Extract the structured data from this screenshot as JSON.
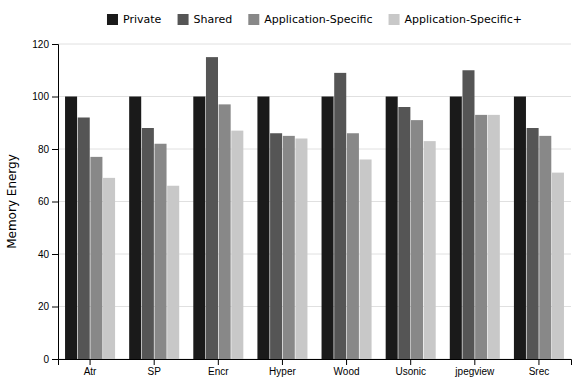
{
  "chart_data": {
    "type": "bar",
    "categories": [
      "Atr",
      "SP",
      "Encr",
      "Hyper",
      "Wood",
      "Usonic",
      "jpegview",
      "Srec"
    ],
    "series": [
      {
        "name": "Private",
        "color": "#1a1a1a",
        "values": [
          100,
          100,
          100,
          100,
          100,
          100,
          100,
          100
        ]
      },
      {
        "name": "Shared",
        "color": "#555555",
        "values": [
          92,
          88,
          115,
          86,
          109,
          96,
          110,
          88
        ]
      },
      {
        "name": "Application-Specific",
        "color": "#888888",
        "values": [
          77,
          82,
          97,
          85,
          86,
          91,
          93,
          85
        ]
      },
      {
        "name": "Application-Specific+",
        "color": "#c8c8c8",
        "values": [
          69,
          66,
          87,
          84,
          76,
          83,
          93,
          71
        ]
      }
    ],
    "ylabel": "Memory Energy",
    "ylim": [
      0,
      120
    ],
    "yticks": [
      0,
      20,
      40,
      60,
      80,
      100,
      120
    ],
    "grid": true,
    "legend": "top"
  }
}
